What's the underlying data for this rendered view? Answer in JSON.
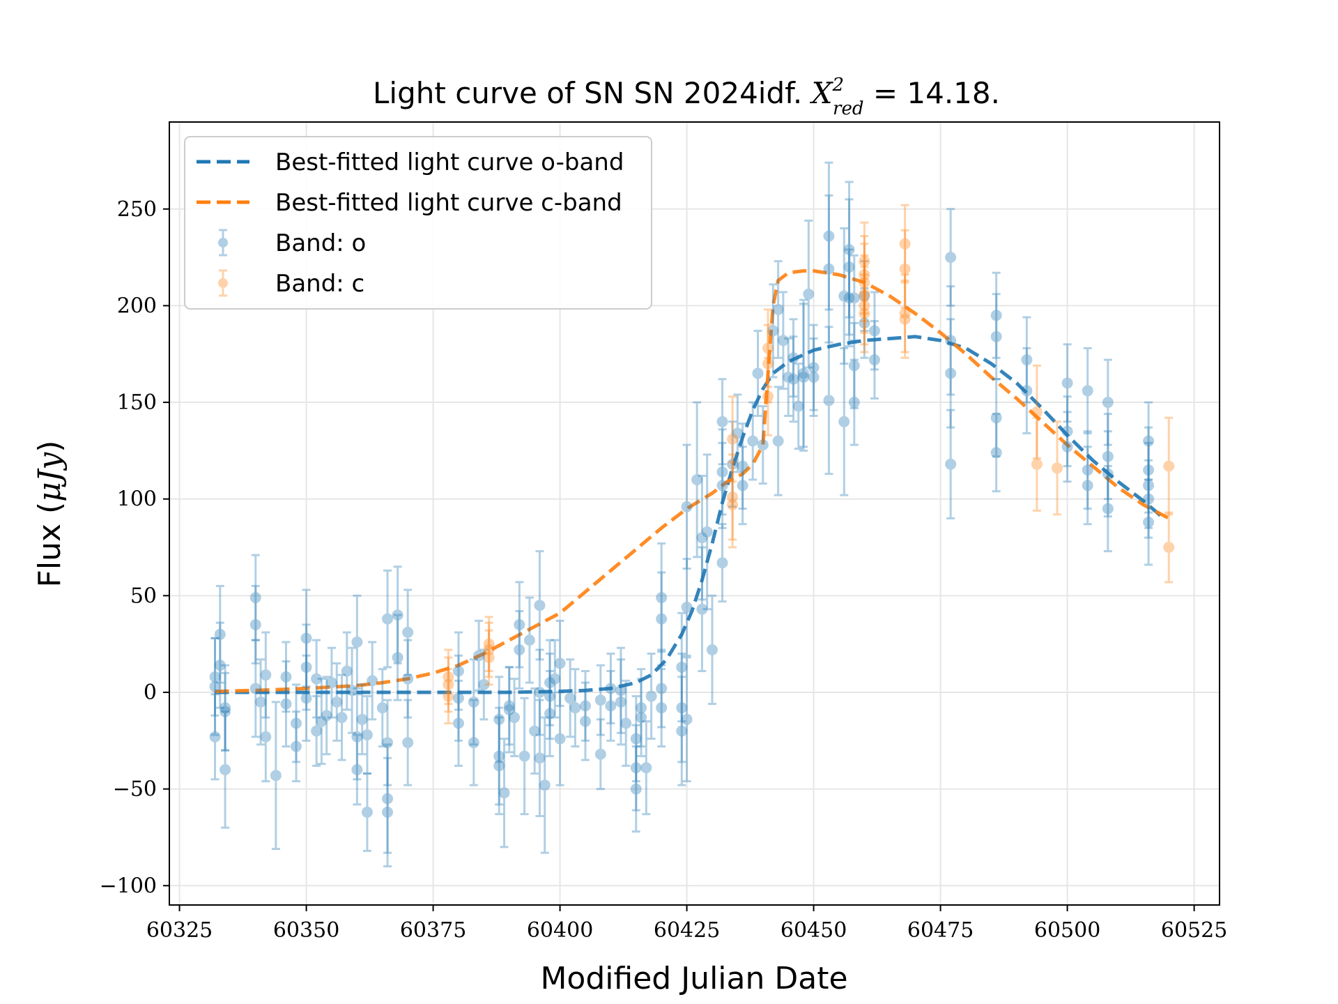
{
  "chart_data": {
    "type": "scatter",
    "title": {
      "prefix": "Light curve of SN SN 2024idf. ",
      "chi_symbol": "X",
      "chi_sup": "2",
      "chi_sub": "red",
      "suffix": " = 14.18."
    },
    "xlabel": "Modified Julian Date",
    "ylabel_text": "Flux (",
    "ylabel_unit": "μJy",
    "ylabel_close": ")",
    "xlim": [
      60323,
      60530
    ],
    "ylim": [
      -110,
      295
    ],
    "xticks": [
      60325,
      60350,
      60375,
      60400,
      60425,
      60450,
      60475,
      60500,
      60525
    ],
    "xtick_labels": [
      "60325",
      "60350",
      "60375",
      "60400",
      "60425",
      "60450",
      "60475",
      "60500",
      "60525"
    ],
    "yticks": [
      -100,
      -50,
      0,
      50,
      100,
      150,
      200,
      250
    ],
    "ytick_labels": [
      "−100",
      "−50",
      "0",
      "50",
      "100",
      "150",
      "200",
      "250"
    ],
    "grid": true,
    "legend_placement": "upper-left",
    "legend": [
      {
        "label": "Best-fitted light curve o-band",
        "kind": "line",
        "color": "#1f77b4"
      },
      {
        "label": "Best-fitted light curve c-band",
        "kind": "line",
        "color": "#ff7f0e"
      },
      {
        "label": "Band: o",
        "kind": "errorbar",
        "color": "#1f77b4"
      },
      {
        "label": "Band: c",
        "kind": "errorbar",
        "color": "#ff7f0e"
      }
    ],
    "fit_curves": [
      {
        "name": "Best-fitted light curve o-band",
        "color": "#1f77b4",
        "x": [
          60332,
          60340,
          60350,
          60360,
          60370,
          60380,
          60390,
          60400,
          60405,
          60410,
          60415,
          60418,
          60421,
          60424,
          60426,
          60428,
          60430,
          60432,
          60434,
          60436,
          60438,
          60440,
          60442,
          60445,
          60450,
          60455,
          60460,
          60465,
          60470,
          60475,
          60480,
          60485,
          60490,
          60495,
          60500,
          60505,
          60510,
          60515,
          60519
        ],
        "y": [
          0,
          0,
          0,
          0,
          0,
          0,
          0,
          0.5,
          1,
          2,
          5,
          9,
          17,
          30,
          42,
          58,
          77,
          98,
          116,
          132,
          146,
          157,
          165,
          171,
          177,
          180,
          182,
          183,
          184,
          182,
          178,
          170,
          160,
          147,
          133,
          120,
          109,
          99,
          90
        ]
      },
      {
        "name": "Best-fitted light curve c-band",
        "color": "#ff7f0e",
        "x": [
          60332,
          60340,
          60350,
          60360,
          60365,
          60370,
          60375,
          60380,
          60385,
          60390,
          60395,
          60400,
          60405,
          60410,
          60415,
          60420,
          60425,
          60430,
          60433,
          60436,
          60438,
          60440,
          60441,
          60442,
          60443,
          60445,
          60448,
          60450,
          60455,
          60460,
          60465,
          60470,
          60475,
          60480,
          60485,
          60490,
          60495,
          60500,
          60505,
          60510,
          60515,
          60520
        ],
        "y": [
          0.5,
          1,
          2,
          3.5,
          5,
          7,
          10,
          14,
          20,
          27,
          34,
          41,
          52,
          63,
          74,
          85,
          95,
          103,
          109,
          113,
          118,
          128,
          165,
          200,
          213,
          217,
          218,
          218,
          216,
          212,
          205,
          196,
          186,
          175,
          163,
          152,
          140,
          128,
          117,
          106,
          97,
          90
        ]
      }
    ],
    "series": [
      {
        "name": "Band: o",
        "color": "#1f77b4",
        "points": [
          [
            60332,
            8,
            20
          ],
          [
            60332,
            3,
            25
          ],
          [
            60332,
            -23,
            22
          ],
          [
            60333,
            30,
            25
          ],
          [
            60333,
            14,
            22
          ],
          [
            60334,
            -8,
            22
          ],
          [
            60334,
            -10,
            20
          ],
          [
            60334,
            -40,
            30
          ],
          [
            60340,
            35,
            20
          ],
          [
            60340,
            49,
            22
          ],
          [
            60340,
            2,
            25
          ],
          [
            60341,
            -5,
            22
          ],
          [
            60342,
            -23,
            23
          ],
          [
            60342,
            9,
            22
          ],
          [
            60344,
            -43,
            38
          ],
          [
            60346,
            8,
            18
          ],
          [
            60346,
            -6,
            22
          ],
          [
            60348,
            -16,
            20
          ],
          [
            60348,
            -28,
            18
          ],
          [
            60350,
            28,
            25
          ],
          [
            60350,
            13,
            22
          ],
          [
            60350,
            -3,
            22
          ],
          [
            60352,
            7,
            20
          ],
          [
            60352,
            -20,
            18
          ],
          [
            60353,
            -15,
            22
          ],
          [
            60354,
            -12,
            20
          ],
          [
            60355,
            5,
            18
          ],
          [
            60356,
            -5,
            20
          ],
          [
            60357,
            -13,
            22
          ],
          [
            60358,
            11,
            20
          ],
          [
            60359,
            1,
            22
          ],
          [
            60360,
            26,
            24
          ],
          [
            60360,
            -23,
            22
          ],
          [
            60360,
            -40,
            18
          ],
          [
            60361,
            -14,
            18
          ],
          [
            60362,
            -62,
            20
          ],
          [
            60362,
            -22,
            20
          ],
          [
            60363,
            6,
            20
          ],
          [
            60365,
            -8,
            20
          ],
          [
            60366,
            -26,
            22
          ],
          [
            60366,
            -55,
            28
          ],
          [
            60366,
            -62,
            28
          ],
          [
            60366,
            38,
            25
          ],
          [
            60368,
            40,
            25
          ],
          [
            60368,
            18,
            22
          ],
          [
            60370,
            31,
            22
          ],
          [
            60370,
            -26,
            22
          ],
          [
            60370,
            7,
            20
          ],
          [
            60380,
            -16,
            22
          ],
          [
            60380,
            -3,
            22
          ],
          [
            60380,
            11,
            20
          ],
          [
            60383,
            -26,
            22
          ],
          [
            60383,
            -5,
            22
          ],
          [
            60384,
            19,
            18
          ],
          [
            60385,
            4,
            18
          ],
          [
            60388,
            -14,
            22
          ],
          [
            60388,
            -33,
            25
          ],
          [
            60388,
            -38,
            25
          ],
          [
            60389,
            -52,
            28
          ],
          [
            60390,
            -9,
            22
          ],
          [
            60390,
            -7,
            20
          ],
          [
            60391,
            -13,
            20
          ],
          [
            60392,
            35,
            22
          ],
          [
            60392,
            22,
            20
          ],
          [
            60393,
            -33,
            30
          ],
          [
            60394,
            27,
            22
          ],
          [
            60395,
            -20,
            22
          ],
          [
            60396,
            45,
            28
          ],
          [
            60396,
            -34,
            30
          ],
          [
            60396,
            0,
            22
          ],
          [
            60397,
            -48,
            35
          ],
          [
            60398,
            -11,
            22
          ],
          [
            60398,
            5,
            22
          ],
          [
            60398,
            -2,
            22
          ],
          [
            60399,
            7,
            20
          ],
          [
            60400,
            -24,
            24
          ],
          [
            60400,
            15,
            22
          ],
          [
            60402,
            -3,
            20
          ],
          [
            60403,
            -8,
            20
          ],
          [
            60405,
            -15,
            20
          ],
          [
            60405,
            -7,
            18
          ],
          [
            60408,
            -32,
            18
          ],
          [
            60408,
            -4,
            18
          ],
          [
            60410,
            -7,
            18
          ],
          [
            60410,
            2,
            18
          ],
          [
            60412,
            1,
            22
          ],
          [
            60412,
            -5,
            22
          ],
          [
            60413,
            -16,
            22
          ],
          [
            60415,
            -50,
            22
          ],
          [
            60415,
            -39,
            22
          ],
          [
            60415,
            -24,
            22
          ],
          [
            60416,
            -13,
            20
          ],
          [
            60416,
            -8,
            20
          ],
          [
            60417,
            -39,
            24
          ],
          [
            60418,
            -2,
            22
          ],
          [
            60420,
            49,
            28
          ],
          [
            60420,
            38,
            24
          ],
          [
            60420,
            2,
            20
          ],
          [
            60420,
            -8,
            20
          ],
          [
            60424,
            -20,
            28
          ],
          [
            60424,
            -8,
            28
          ],
          [
            60424,
            13,
            28
          ],
          [
            60425,
            44,
            25
          ],
          [
            60425,
            96,
            32
          ],
          [
            60425,
            -14,
            32
          ],
          [
            60427,
            110,
            40
          ],
          [
            60428,
            80,
            32
          ],
          [
            60428,
            43,
            32
          ],
          [
            60429,
            83,
            40
          ],
          [
            60430,
            22,
            28
          ],
          [
            60432,
            140,
            22
          ],
          [
            60432,
            114,
            22
          ],
          [
            60432,
            107,
            22
          ],
          [
            60432,
            67,
            20
          ],
          [
            60434,
            118,
            22
          ],
          [
            60435,
            134,
            20
          ],
          [
            60436,
            117,
            22
          ],
          [
            60436,
            107,
            20
          ],
          [
            60438,
            130,
            20
          ],
          [
            60439,
            165,
            22
          ],
          [
            60440,
            128,
            20
          ],
          [
            60442,
            187,
            24
          ],
          [
            60443,
            198,
            25
          ],
          [
            60443,
            130,
            28
          ],
          [
            60444,
            182,
            25
          ],
          [
            60445,
            163,
            20
          ],
          [
            60446,
            173,
            20
          ],
          [
            60446,
            162,
            22
          ],
          [
            60447,
            148,
            22
          ],
          [
            60448,
            165,
            38
          ],
          [
            60448,
            163,
            38
          ],
          [
            60449,
            206,
            38
          ],
          [
            60450,
            163,
            20
          ],
          [
            60450,
            168,
            22
          ],
          [
            60453,
            236,
            38
          ],
          [
            60453,
            219,
            38
          ],
          [
            60453,
            151,
            38
          ],
          [
            60456,
            140,
            38
          ],
          [
            60456,
            205,
            35
          ],
          [
            60457,
            229,
            35
          ],
          [
            60457,
            220,
            35
          ],
          [
            60457,
            204,
            25
          ],
          [
            60458,
            169,
            22
          ],
          [
            60458,
            150,
            22
          ],
          [
            60458,
            204,
            22
          ],
          [
            60460,
            191,
            18
          ],
          [
            60460,
            205,
            18
          ],
          [
            60462,
            172,
            20
          ],
          [
            60462,
            187,
            20
          ],
          [
            60477,
            225,
            25
          ],
          [
            60477,
            182,
            28
          ],
          [
            60477,
            165,
            28
          ],
          [
            60477,
            118,
            28
          ],
          [
            60486,
            195,
            22
          ],
          [
            60486,
            184,
            22
          ],
          [
            60486,
            142,
            20
          ],
          [
            60486,
            124,
            20
          ],
          [
            60492,
            172,
            22
          ],
          [
            60492,
            156,
            22
          ],
          [
            60500,
            160,
            20
          ],
          [
            60500,
            135,
            18
          ],
          [
            60500,
            127,
            18
          ],
          [
            60504,
            156,
            22
          ],
          [
            60504,
            115,
            20
          ],
          [
            60504,
            107,
            20
          ],
          [
            60508,
            150,
            22
          ],
          [
            60508,
            122,
            22
          ],
          [
            60508,
            113,
            22
          ],
          [
            60508,
            95,
            22
          ],
          [
            60516,
            130,
            20
          ],
          [
            60516,
            115,
            22
          ],
          [
            60516,
            107,
            22
          ],
          [
            60516,
            100,
            20
          ],
          [
            60516,
            88,
            22
          ]
        ]
      },
      {
        "name": "Band: c",
        "color": "#ff7f0e",
        "points": [
          [
            60378,
            8,
            14
          ],
          [
            60378,
            4,
            14
          ],
          [
            60378,
            -2,
            14
          ],
          [
            60386,
            25,
            14
          ],
          [
            60386,
            22,
            14
          ],
          [
            60386,
            18,
            14
          ],
          [
            60434,
            131,
            22
          ],
          [
            60434,
            101,
            22
          ],
          [
            60434,
            97,
            22
          ],
          [
            60441,
            178,
            20
          ],
          [
            60441,
            170,
            20
          ],
          [
            60441,
            153,
            20
          ],
          [
            60460,
            223,
            20
          ],
          [
            60460,
            216,
            20
          ],
          [
            60460,
            212,
            20
          ],
          [
            60460,
            206,
            20
          ],
          [
            60460,
            200,
            20
          ],
          [
            60460,
            196,
            20
          ],
          [
            60468,
            232,
            20
          ],
          [
            60468,
            219,
            20
          ],
          [
            60468,
            196,
            20
          ],
          [
            60468,
            193,
            20
          ],
          [
            60494,
            145,
            24
          ],
          [
            60494,
            118,
            24
          ],
          [
            60498,
            116,
            24
          ],
          [
            60520,
            117,
            25
          ],
          [
            60520,
            75,
            18
          ]
        ]
      }
    ]
  }
}
